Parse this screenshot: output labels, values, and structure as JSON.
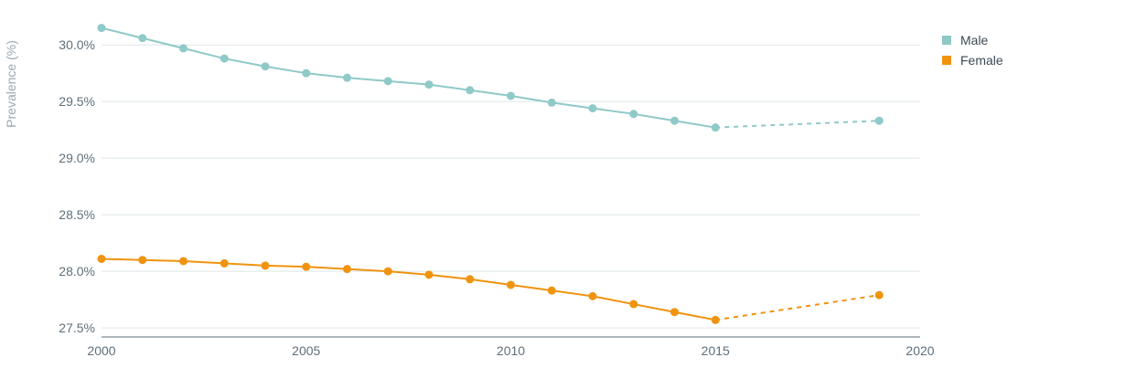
{
  "chart_data": {
    "type": "line",
    "ylabel": "Prevalence (%)",
    "xlim": [
      2000,
      2020
    ],
    "ylim": [
      27.42,
      30.3
    ],
    "xticks": [
      2000,
      2005,
      2010,
      2015,
      2020
    ],
    "yticks": [
      27.5,
      28.0,
      28.5,
      29.0,
      29.5,
      30.0
    ],
    "ytick_labels": [
      "27.5%",
      "28.0%",
      "28.5%",
      "29.0%",
      "29.5%",
      "30.0%"
    ],
    "xtick_labels": [
      "2000",
      "2005",
      "2010",
      "2015",
      "2020"
    ],
    "grid": true,
    "legend_position": "top-right",
    "series": [
      {
        "name": "Male",
        "color": "#8fc9c8",
        "x": [
          2000,
          2001,
          2002,
          2003,
          2004,
          2005,
          2006,
          2007,
          2008,
          2009,
          2010,
          2011,
          2012,
          2013,
          2014,
          2015,
          2019
        ],
        "values": [
          30.15,
          30.06,
          29.97,
          29.88,
          29.81,
          29.75,
          29.71,
          29.68,
          29.65,
          29.6,
          29.55,
          29.49,
          29.44,
          29.39,
          29.33,
          29.27,
          29.33
        ],
        "projected_from_index": 15
      },
      {
        "name": "Female",
        "color": "#f0930f",
        "x": [
          2000,
          2001,
          2002,
          2003,
          2004,
          2005,
          2006,
          2007,
          2008,
          2009,
          2010,
          2011,
          2012,
          2013,
          2014,
          2015,
          2019
        ],
        "values": [
          28.11,
          28.1,
          28.09,
          28.07,
          28.05,
          28.04,
          28.02,
          28.0,
          27.97,
          27.93,
          27.88,
          27.83,
          27.78,
          27.71,
          27.64,
          27.57,
          27.79
        ],
        "projected_from_index": 15
      }
    ]
  }
}
